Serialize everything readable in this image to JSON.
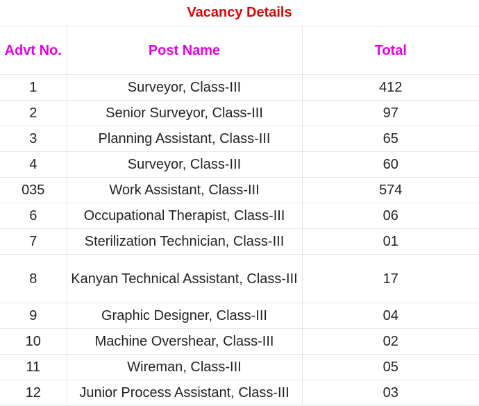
{
  "title": "Vacancy Details",
  "headers": {
    "advt_no": "Advt No.",
    "post_name": "Post Name",
    "total": "Total"
  },
  "rows": [
    {
      "advt_no": "1",
      "post_name": "Surveyor, Class-III",
      "total": "412"
    },
    {
      "advt_no": "2",
      "post_name": "Senior Surveyor, Class-III",
      "total": "97"
    },
    {
      "advt_no": "3",
      "post_name": "Planning Assistant, Class-III",
      "total": "65"
    },
    {
      "advt_no": "4",
      "post_name": "Surveyor, Class-III",
      "total": "60"
    },
    {
      "advt_no": "035",
      "post_name": "Work Assistant, Class-III",
      "total": "574"
    },
    {
      "advt_no": "6",
      "post_name": "Occupational Therapist, Class-III",
      "total": "06"
    },
    {
      "advt_no": "7",
      "post_name": "Sterilization Technician, Class-III",
      "total": "01"
    },
    {
      "advt_no": "8",
      "post_name": "Kanyan Technical Assistant, Class-III",
      "total": "17"
    },
    {
      "advt_no": "9",
      "post_name": "Graphic Designer, Class-III",
      "total": "04"
    },
    {
      "advt_no": "10",
      "post_name": "Machine Overshear, Class-III",
      "total": "02"
    },
    {
      "advt_no": "11",
      "post_name": "Wireman, Class-III",
      "total": "05"
    },
    {
      "advt_no": "12",
      "post_name": "Junior Process Assistant, Class-III",
      "total": "03"
    }
  ],
  "colors": {
    "title": "#e00000",
    "header": "#e600e6",
    "grid": "#e6e6e6"
  }
}
